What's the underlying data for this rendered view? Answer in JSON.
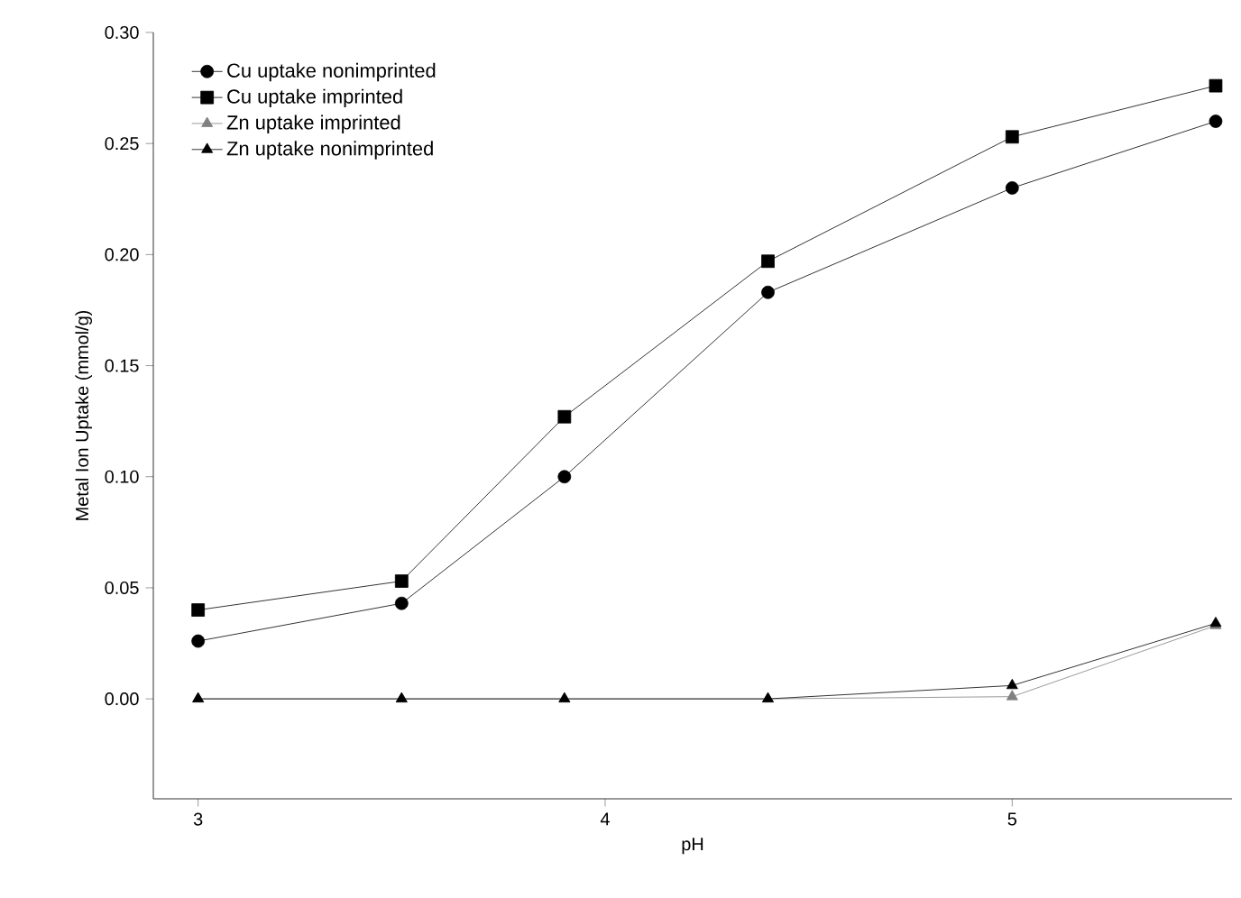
{
  "chart_data": {
    "type": "line",
    "xlabel": "pH",
    "ylabel": "Metal Ion Uptake (mmol/g)",
    "x": [
      3,
      3.5,
      3.9,
      4.4,
      5,
      5.5
    ],
    "series": [
      {
        "name": "Cu uptake nonimprinted",
        "color": "#000000",
        "marker": "circle",
        "values": [
          0.026,
          0.043,
          0.1,
          0.183,
          0.23,
          0.26
        ]
      },
      {
        "name": "Cu uptake imprinted",
        "color": "#000000",
        "marker": "square",
        "values": [
          0.04,
          0.053,
          0.127,
          0.197,
          0.253,
          0.276
        ]
      },
      {
        "name": "Zn uptake imprinted",
        "color": "#808080",
        "marker": "triangle",
        "values": [
          0,
          0,
          0,
          0,
          0.001,
          0.033
        ]
      },
      {
        "name": "Zn uptake nonimprinted",
        "color": "#000000",
        "marker": "triangle",
        "values": [
          0,
          0,
          0,
          0,
          0.006,
          0.034
        ]
      }
    ],
    "xlim": [
      2.89,
      5.54
    ],
    "ylim": [
      -0.045,
      0.3
    ],
    "xticks": [
      3,
      4,
      5
    ],
    "yticks": [
      {
        "value": 0,
        "label": "0.00"
      },
      {
        "value": 0.05,
        "label": "0.05"
      },
      {
        "value": 0.1,
        "label": "0.10"
      },
      {
        "value": 0.15,
        "label": "0.15"
      },
      {
        "value": 0.2,
        "label": "0.20"
      },
      {
        "value": 0.25,
        "label": "0.25"
      },
      {
        "value": 0.3,
        "label": "0.30"
      }
    ],
    "grid": false,
    "legend": "top left",
    "line_style": "solid"
  }
}
